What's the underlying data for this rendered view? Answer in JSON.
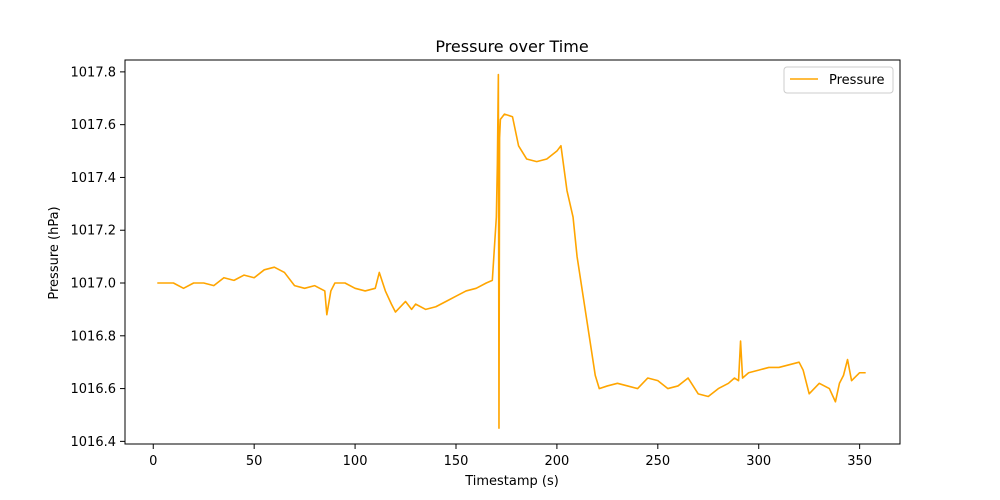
{
  "chart_data": {
    "type": "line",
    "title": "Pressure over Time",
    "xlabel": "Timestamp (s)",
    "ylabel": "Pressure (hPa)",
    "xlim": [
      -14,
      370
    ],
    "ylim": [
      1016.39,
      1017.845
    ],
    "xticks": [
      0,
      50,
      100,
      150,
      200,
      250,
      300,
      350
    ],
    "yticks": [
      1016.4,
      1016.6,
      1016.8,
      1017.0,
      1017.2,
      1017.4,
      1017.6,
      1017.8
    ],
    "ytick_labels": [
      "1016.4",
      "1016.6",
      "1016.8",
      "1017.0",
      "1017.2",
      "1017.4",
      "1017.6",
      "1017.8"
    ],
    "grid": false,
    "legend_position": "top-right",
    "series": [
      {
        "name": "Pressure",
        "color": "#ffa500",
        "x": [
          2,
          10,
          15,
          20,
          25,
          30,
          35,
          40,
          45,
          50,
          55,
          60,
          65,
          70,
          75,
          80,
          85,
          86,
          88,
          90,
          95,
          100,
          105,
          110,
          112,
          115,
          118,
          120,
          125,
          128,
          130,
          135,
          140,
          145,
          150,
          155,
          160,
          165,
          168,
          170,
          170.5,
          171,
          171.3,
          171.6,
          172,
          174,
          178,
          181,
          185,
          190,
          195,
          200,
          202,
          205,
          208,
          210,
          213,
          216,
          219,
          221,
          225,
          230,
          235,
          240,
          245,
          250,
          255,
          260,
          265,
          270,
          275,
          280,
          285,
          288,
          290,
          291,
          292,
          295,
          300,
          305,
          310,
          315,
          320,
          322,
          325,
          330,
          335,
          338,
          340,
          342,
          344,
          346,
          350,
          353
        ],
        "y": [
          1017.0,
          1017.0,
          1016.98,
          1017.0,
          1017.0,
          1016.99,
          1017.02,
          1017.01,
          1017.03,
          1017.02,
          1017.05,
          1017.06,
          1017.04,
          1016.99,
          1016.98,
          1016.99,
          1016.97,
          1016.88,
          1016.97,
          1017.0,
          1017.0,
          1016.98,
          1016.97,
          1016.98,
          1017.04,
          1016.97,
          1016.92,
          1016.89,
          1016.93,
          1016.9,
          1016.92,
          1016.9,
          1016.91,
          1016.93,
          1016.95,
          1016.97,
          1016.98,
          1017.0,
          1017.01,
          1017.25,
          1017.45,
          1017.79,
          1016.45,
          1017.55,
          1017.62,
          1017.64,
          1017.63,
          1017.52,
          1017.47,
          1017.46,
          1017.47,
          1017.5,
          1017.52,
          1017.35,
          1017.25,
          1017.1,
          1016.95,
          1016.8,
          1016.65,
          1016.6,
          1016.61,
          1016.62,
          1016.61,
          1016.6,
          1016.64,
          1016.63,
          1016.6,
          1016.61,
          1016.64,
          1016.58,
          1016.57,
          1016.6,
          1016.62,
          1016.64,
          1016.63,
          1016.78,
          1016.64,
          1016.66,
          1016.67,
          1016.68,
          1016.68,
          1016.69,
          1016.7,
          1016.67,
          1016.58,
          1016.62,
          1016.6,
          1016.55,
          1016.62,
          1016.65,
          1016.71,
          1016.63,
          1016.66,
          1016.66
        ]
      }
    ]
  }
}
